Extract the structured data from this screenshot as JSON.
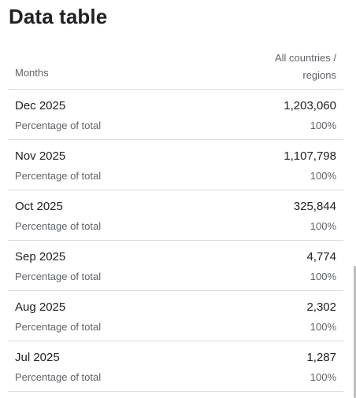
{
  "title": "Data table",
  "table": {
    "headers": {
      "months": "Months",
      "countries_line1": "All countries /",
      "countries_line2": "regions"
    },
    "rows": [
      {
        "month": "Dec 2025",
        "value": "1,203,060",
        "pct_label": "Percentage of total",
        "pct_value": "100%"
      },
      {
        "month": "Nov 2025",
        "value": "1,107,798",
        "pct_label": "Percentage of total",
        "pct_value": "100%"
      },
      {
        "month": "Oct 2025",
        "value": "325,844",
        "pct_label": "Percentage of total",
        "pct_value": "100%"
      },
      {
        "month": "Sep 2025",
        "value": "4,774",
        "pct_label": "Percentage of total",
        "pct_value": "100%"
      },
      {
        "month": "Aug 2025",
        "value": "2,302",
        "pct_label": "Percentage of total",
        "pct_value": "100%"
      },
      {
        "month": "Jul 2025",
        "value": "1,287",
        "pct_label": "Percentage of total",
        "pct_value": "100%"
      }
    ]
  },
  "colors": {
    "text_primary": "#202124",
    "text_secondary": "#5f6368",
    "divider": "#dadce0",
    "scrollbar": "#bdbdbd"
  }
}
